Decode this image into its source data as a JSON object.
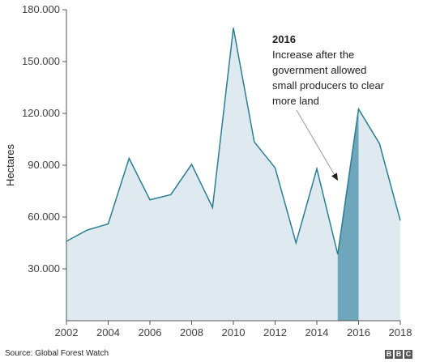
{
  "chart_data": {
    "type": "area",
    "ylabel": "Hectares",
    "x": [
      2002,
      2003,
      2004,
      2005,
      2006,
      2007,
      2008,
      2009,
      2010,
      2011,
      2012,
      2013,
      2014,
      2015,
      2016,
      2017,
      2018
    ],
    "values": [
      46000,
      52500,
      56000,
      94000,
      70000,
      73000,
      90500,
      65500,
      169500,
      103500,
      88500,
      45000,
      88000,
      38500,
      122500,
      102500,
      58000
    ],
    "xlim": [
      2002,
      2018
    ],
    "ylim": [
      0,
      180000
    ],
    "x_tick_labels": [
      "2002",
      "2004",
      "2006",
      "2008",
      "2010",
      "2012",
      "2014",
      "2016",
      "2018"
    ],
    "y_tick_labels": [
      "30.000",
      "60.000",
      "90.000",
      "120.000",
      "150.000",
      "180.000"
    ],
    "highlight": {
      "from": 2015,
      "to": 2016
    },
    "annotation": {
      "year": "2016",
      "lines": [
        "Increase after the",
        "government allowed",
        "small producers to clear",
        "more land"
      ]
    },
    "colors": {
      "area_fill": "#dfe9f0",
      "line": "#2b7e93",
      "highlight": "#6ea7bb"
    }
  },
  "footer": {
    "source": "Source: Global Forest Watch",
    "logo_letters": [
      "B",
      "B",
      "C"
    ]
  }
}
